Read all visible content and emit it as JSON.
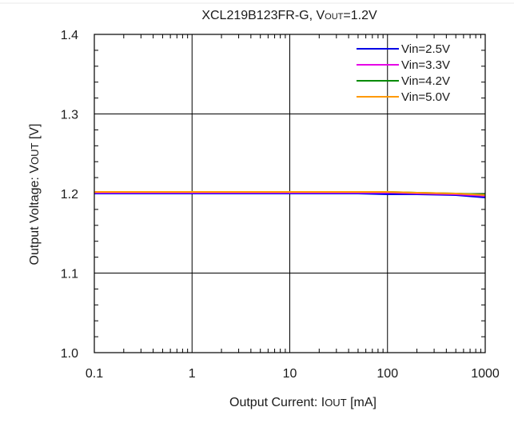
{
  "chart_data": {
    "type": "line",
    "title": {
      "main": "XCL219B123FR-G, V",
      "sub": "OUT",
      "tail": "=1.2V"
    },
    "xlabel": {
      "main": "Output  Current:  I",
      "sub": "OUT",
      "tail": " [mA]"
    },
    "ylabel": {
      "main": "Output  Voltage:  V",
      "sub": "OUT",
      "tail": " [V]"
    },
    "xscale": "log",
    "xlim": [
      0.1,
      1000
    ],
    "ylim": [
      1.0,
      1.4
    ],
    "xticks": [
      {
        "value": 0.1,
        "label": "0.1"
      },
      {
        "value": 1,
        "label": "1"
      },
      {
        "value": 10,
        "label": "10"
      },
      {
        "value": 100,
        "label": "100"
      },
      {
        "value": 1000,
        "label": "1000"
      }
    ],
    "yticks": [
      {
        "value": 1.0,
        "label": "1.0"
      },
      {
        "value": 1.1,
        "label": "1.1"
      },
      {
        "value": 1.2,
        "label": "1.2"
      },
      {
        "value": 1.3,
        "label": "1.3"
      },
      {
        "value": 1.4,
        "label": "1.4"
      }
    ],
    "grid": true,
    "legend_position": "top-right",
    "series": [
      {
        "name": "Vin=2.5V",
        "color": "#0000e6",
        "x": [
          0.1,
          1,
          10,
          50,
          100,
          200,
          500,
          1000
        ],
        "y": [
          1.2,
          1.2,
          1.2,
          1.2,
          1.199,
          1.199,
          1.198,
          1.195
        ]
      },
      {
        "name": "Vin=3.3V",
        "color": "#e600e6",
        "x": [
          0.1,
          1,
          10,
          50,
          100,
          200,
          500,
          1000
        ],
        "y": [
          1.201,
          1.201,
          1.201,
          1.201,
          1.201,
          1.2,
          1.199,
          1.197
        ]
      },
      {
        "name": "Vin=4.2V",
        "color": "#008a00",
        "x": [
          0.1,
          1,
          10,
          50,
          100,
          200,
          500,
          1000
        ],
        "y": [
          1.202,
          1.202,
          1.202,
          1.202,
          1.202,
          1.201,
          1.2,
          1.199
        ]
      },
      {
        "name": "Vin=5.0V",
        "color": "#ff9900",
        "x": [
          0.1,
          1,
          10,
          50,
          100,
          200,
          500,
          1000
        ],
        "y": [
          1.202,
          1.202,
          1.202,
          1.202,
          1.202,
          1.201,
          1.2,
          1.198
        ]
      }
    ]
  }
}
